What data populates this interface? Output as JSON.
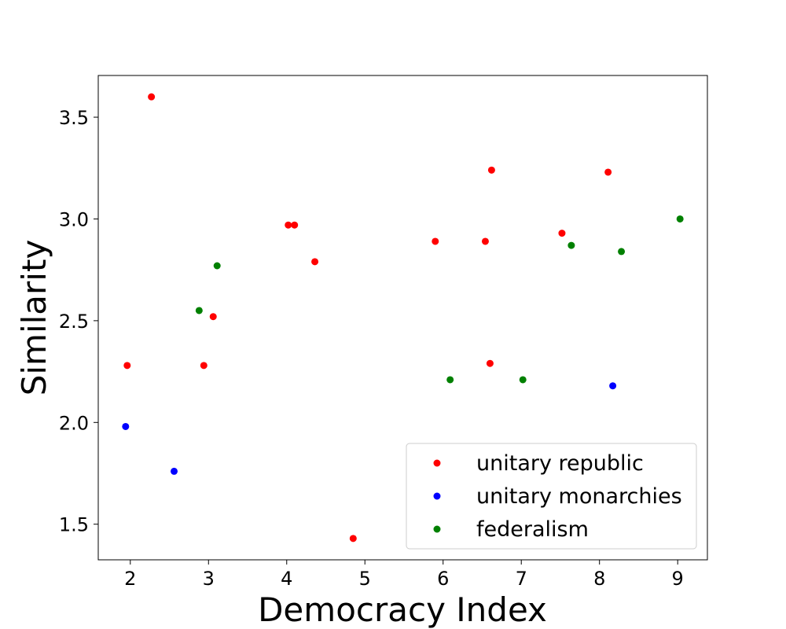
{
  "chart_data": {
    "type": "scatter",
    "title": "",
    "xlabel": "Democracy Index",
    "ylabel": "Similarity",
    "xlim": [
      1.59,
      9.38
    ],
    "ylim": [
      1.325,
      3.705
    ],
    "xticks": [
      2,
      3,
      4,
      5,
      6,
      7,
      8,
      9
    ],
    "yticks": [
      1.5,
      2.0,
      2.5,
      3.0,
      3.5
    ],
    "grid": false,
    "legend_position": "lower-right",
    "series": [
      {
        "name": "unitary republic",
        "color": "#ff0000",
        "points": [
          {
            "x": 1.96,
            "y": 2.28
          },
          {
            "x": 2.27,
            "y": 3.6
          },
          {
            "x": 2.94,
            "y": 2.28
          },
          {
            "x": 3.06,
            "y": 2.52
          },
          {
            "x": 4.02,
            "y": 2.97
          },
          {
            "x": 4.1,
            "y": 2.97
          },
          {
            "x": 4.36,
            "y": 2.79
          },
          {
            "x": 4.85,
            "y": 1.43
          },
          {
            "x": 5.9,
            "y": 2.89
          },
          {
            "x": 6.54,
            "y": 2.89
          },
          {
            "x": 6.6,
            "y": 2.29
          },
          {
            "x": 6.62,
            "y": 3.24
          },
          {
            "x": 7.52,
            "y": 2.93
          },
          {
            "x": 8.11,
            "y": 3.23
          }
        ]
      },
      {
        "name": "unitary monarchies",
        "color": "#0000ff",
        "points": [
          {
            "x": 1.94,
            "y": 1.98
          },
          {
            "x": 2.56,
            "y": 1.76
          },
          {
            "x": 8.17,
            "y": 2.18
          }
        ]
      },
      {
        "name": "federalism",
        "color": "#008000",
        "points": [
          {
            "x": 2.88,
            "y": 2.55
          },
          {
            "x": 3.11,
            "y": 2.77
          },
          {
            "x": 6.09,
            "y": 2.21
          },
          {
            "x": 7.02,
            "y": 2.21
          },
          {
            "x": 7.64,
            "y": 2.87
          },
          {
            "x": 8.28,
            "y": 2.84
          },
          {
            "x": 9.03,
            "y": 3.0
          }
        ]
      }
    ]
  }
}
